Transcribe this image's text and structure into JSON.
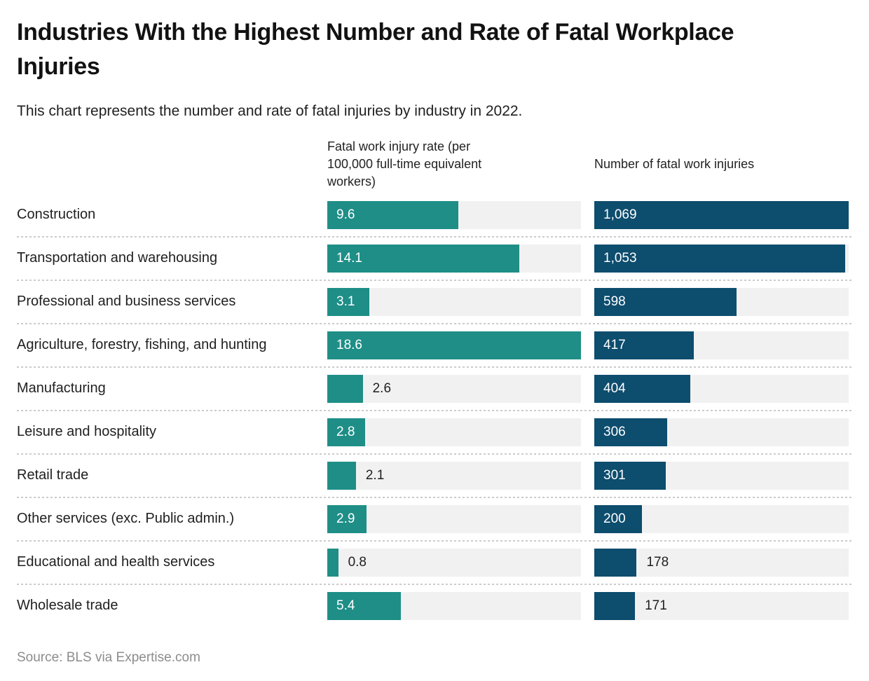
{
  "header": {
    "title": "Industries With the Highest Number and Rate of Fatal Workplace Injuries",
    "subtitle": "This chart represents the number and rate of fatal injuries by industry in 2022."
  },
  "footer": {
    "source": "Source: BLS via Expertise.com"
  },
  "colors": {
    "rate_bar": "#1e8e87",
    "number_bar": "#0d4d6e",
    "bar_track": "#f1f1f2",
    "value_inside": "#ffffff",
    "value_outside": "#1f1f1f",
    "separator": "#cccccc",
    "title_text": "#121212",
    "body_text": "#1f1f1f",
    "source_text": "#8c8c8c"
  },
  "chart_data": {
    "type": "bar",
    "orientation": "horizontal",
    "grid": false,
    "legend": false,
    "categories": [
      "Construction",
      "Transportation and warehousing",
      "Professional and business services",
      "Agriculture, forestry, fishing, and hunting",
      "Manufacturing",
      "Leisure and hospitality",
      "Retail trade",
      "Other services (exc. Public admin.)",
      "Educational and health services",
      "Wholesale trade"
    ],
    "series": [
      {
        "name": "Fatal work injury rate (per 100,000 full-time equivalent workers)",
        "values": [
          9.6,
          14.1,
          3.1,
          18.6,
          2.6,
          2.8,
          2.1,
          2.9,
          0.8,
          5.4
        ],
        "display": [
          "9.6",
          "14.1",
          "3.1",
          "18.6",
          "2.6",
          "2.8",
          "2.1",
          "2.9",
          "0.8",
          "5.4"
        ],
        "axis_max": 18.6,
        "label_placement": [
          "inside",
          "inside",
          "inside",
          "inside",
          "outside",
          "inside",
          "outside",
          "inside",
          "outside",
          "inside"
        ]
      },
      {
        "name": "Number of fatal work injuries",
        "values": [
          1069,
          1053,
          598,
          417,
          404,
          306,
          301,
          200,
          178,
          171
        ],
        "display": [
          "1,069",
          "1,053",
          "598",
          "417",
          "404",
          "306",
          "301",
          "200",
          "178",
          "171"
        ],
        "axis_max": 1069,
        "label_placement": [
          "inside",
          "inside",
          "inside",
          "inside",
          "inside",
          "inside",
          "inside",
          "inside",
          "outside",
          "outside"
        ]
      }
    ]
  }
}
